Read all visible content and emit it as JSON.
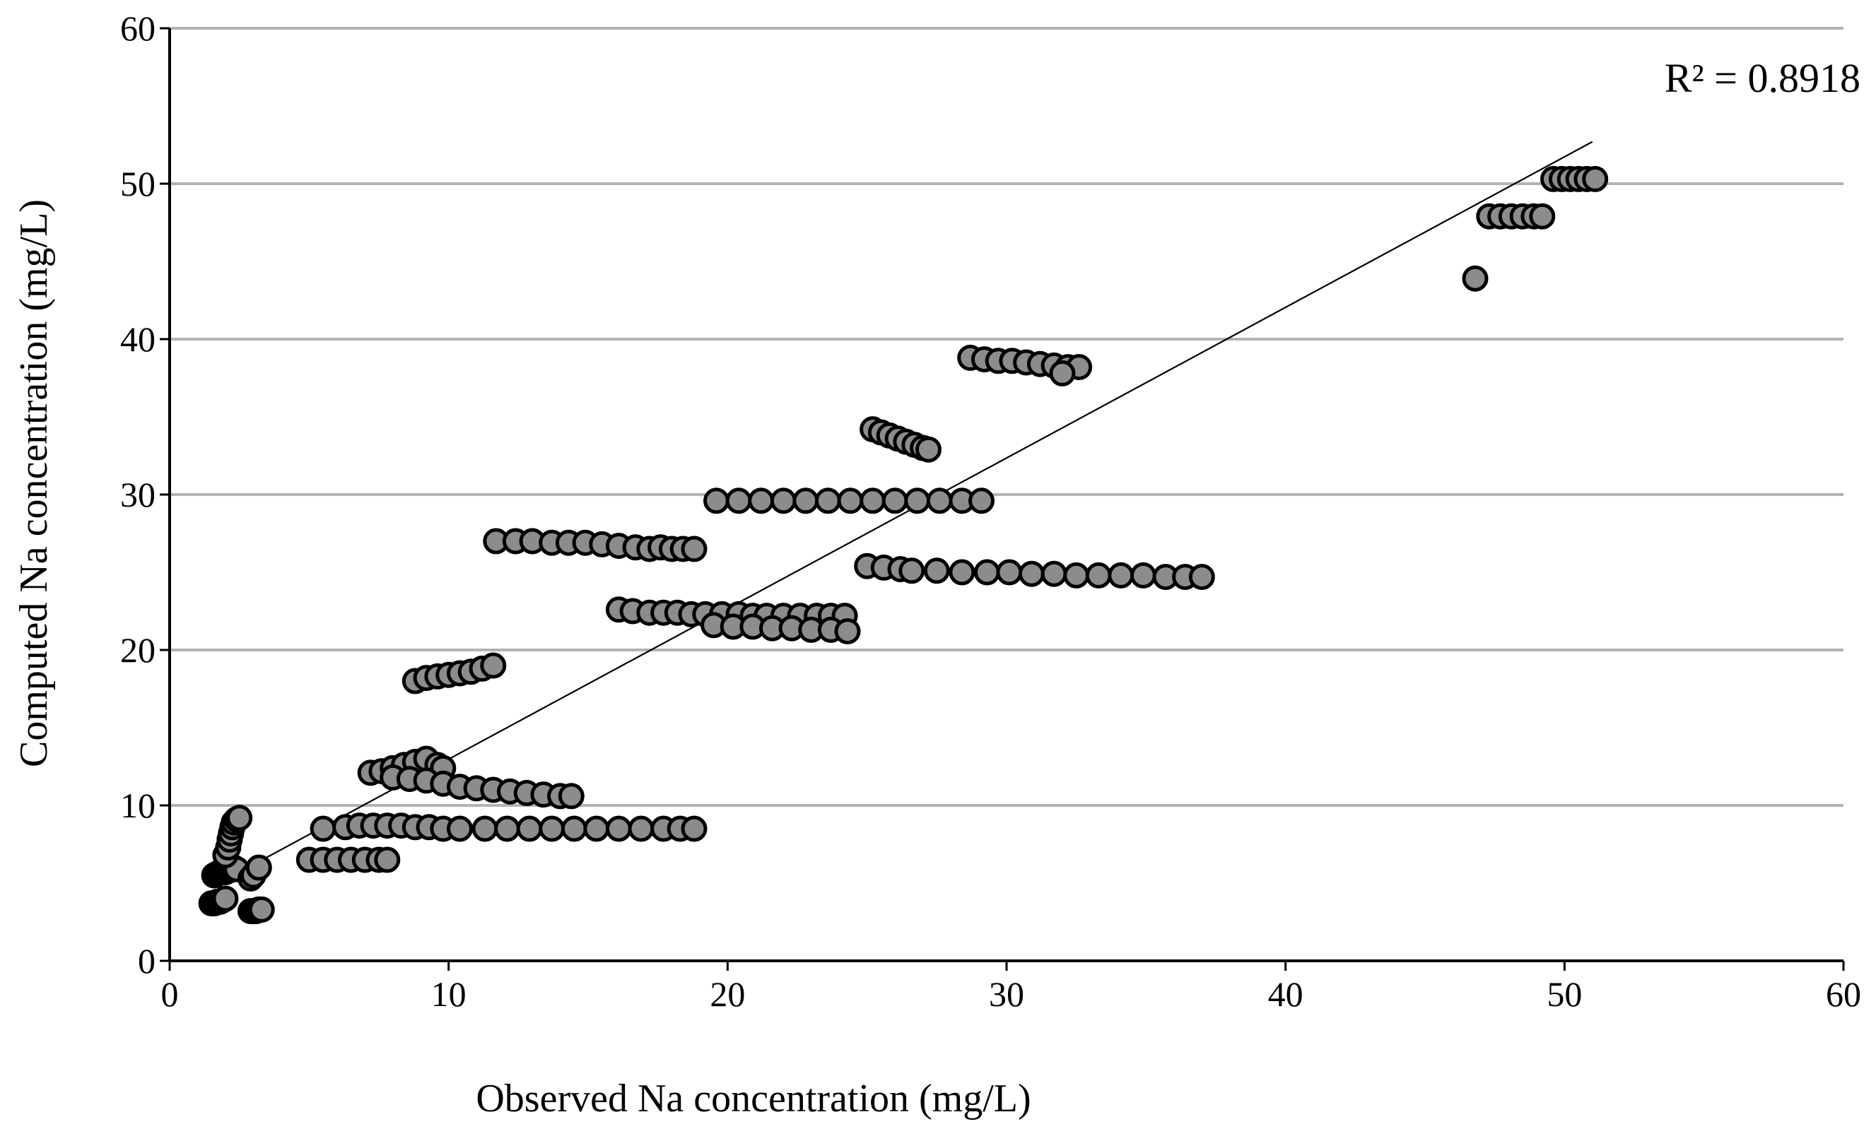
{
  "chart_data": {
    "type": "scatter",
    "title": "",
    "xlabel": "Observed Na concentration (mg/L)",
    "ylabel": "Computed Na concentration (mg/L)",
    "xlim": [
      0,
      60
    ],
    "ylim": [
      0,
      60
    ],
    "x_ticks": [
      "0",
      "10",
      "20",
      "30",
      "40",
      "50",
      "60"
    ],
    "y_ticks": [
      "0",
      "10",
      "20",
      "30",
      "40",
      "50",
      "60"
    ],
    "grid": "horizontal",
    "annotation": "R² = 0.8918",
    "marker_fill": "#8c8c8c",
    "marker_edge": "#000000",
    "trendline": {
      "x": [
        2.7,
        51.0
      ],
      "y": [
        5.9,
        52.7
      ]
    },
    "series": [
      {
        "name": "Na concentration",
        "points": [
          [
            1.5,
            3.7
          ],
          [
            1.6,
            3.7
          ],
          [
            1.7,
            3.8
          ],
          [
            1.8,
            3.8
          ],
          [
            1.9,
            3.9
          ],
          [
            2.0,
            4.0
          ],
          [
            1.6,
            5.5
          ],
          [
            1.7,
            5.6
          ],
          [
            1.8,
            5.7
          ],
          [
            1.9,
            5.8
          ],
          [
            2.0,
            5.7
          ],
          [
            2.1,
            5.8
          ],
          [
            2.2,
            5.9
          ],
          [
            2.3,
            6.0
          ],
          [
            2.4,
            5.9
          ],
          [
            2.0,
            6.8
          ],
          [
            2.1,
            7.3
          ],
          [
            2.15,
            7.8
          ],
          [
            2.2,
            8.2
          ],
          [
            2.25,
            8.6
          ],
          [
            2.3,
            8.9
          ],
          [
            2.4,
            9.1
          ],
          [
            2.5,
            9.2
          ],
          [
            2.9,
            3.2
          ],
          [
            3.0,
            3.2
          ],
          [
            3.1,
            3.2
          ],
          [
            3.2,
            3.3
          ],
          [
            3.3,
            3.3
          ],
          [
            2.9,
            5.3
          ],
          [
            3.0,
            5.5
          ],
          [
            3.2,
            6.0
          ],
          [
            5.0,
            6.5
          ],
          [
            5.5,
            6.5
          ],
          [
            6.0,
            6.5
          ],
          [
            6.5,
            6.5
          ],
          [
            7.0,
            6.5
          ],
          [
            7.5,
            6.5
          ],
          [
            7.8,
            6.5
          ],
          [
            5.5,
            8.5
          ],
          [
            6.3,
            8.6
          ],
          [
            6.8,
            8.7
          ],
          [
            7.3,
            8.7
          ],
          [
            7.8,
            8.7
          ],
          [
            8.3,
            8.7
          ],
          [
            8.8,
            8.6
          ],
          [
            9.3,
            8.6
          ],
          [
            9.8,
            8.5
          ],
          [
            10.4,
            8.5
          ],
          [
            11.3,
            8.5
          ],
          [
            12.1,
            8.5
          ],
          [
            12.9,
            8.5
          ],
          [
            13.7,
            8.5
          ],
          [
            14.5,
            8.5
          ],
          [
            15.3,
            8.5
          ],
          [
            16.1,
            8.5
          ],
          [
            16.9,
            8.5
          ],
          [
            17.7,
            8.5
          ],
          [
            18.3,
            8.5
          ],
          [
            18.8,
            8.5
          ],
          [
            7.2,
            12.1
          ],
          [
            7.6,
            12.2
          ],
          [
            8.0,
            12.4
          ],
          [
            8.4,
            12.6
          ],
          [
            8.8,
            12.8
          ],
          [
            9.2,
            13.0
          ],
          [
            9.6,
            12.6
          ],
          [
            9.8,
            12.4
          ],
          [
            8.0,
            11.8
          ],
          [
            8.6,
            11.7
          ],
          [
            9.2,
            11.6
          ],
          [
            9.8,
            11.4
          ],
          [
            10.4,
            11.2
          ],
          [
            11.0,
            11.1
          ],
          [
            11.6,
            11.0
          ],
          [
            12.2,
            10.9
          ],
          [
            12.8,
            10.8
          ],
          [
            13.4,
            10.7
          ],
          [
            14.0,
            10.6
          ],
          [
            14.4,
            10.6
          ],
          [
            8.8,
            18.0
          ],
          [
            9.2,
            18.2
          ],
          [
            9.6,
            18.3
          ],
          [
            10.0,
            18.4
          ],
          [
            10.4,
            18.5
          ],
          [
            10.8,
            18.6
          ],
          [
            11.2,
            18.8
          ],
          [
            11.6,
            19.0
          ],
          [
            11.7,
            27.0
          ],
          [
            12.4,
            27.0
          ],
          [
            13.0,
            27.0
          ],
          [
            13.7,
            26.9
          ],
          [
            14.3,
            26.9
          ],
          [
            14.9,
            26.9
          ],
          [
            15.5,
            26.8
          ],
          [
            16.1,
            26.7
          ],
          [
            16.7,
            26.6
          ],
          [
            17.2,
            26.5
          ],
          [
            17.6,
            26.6
          ],
          [
            18.0,
            26.5
          ],
          [
            18.4,
            26.5
          ],
          [
            18.8,
            26.5
          ],
          [
            16.1,
            22.6
          ],
          [
            16.6,
            22.5
          ],
          [
            17.2,
            22.4
          ],
          [
            17.7,
            22.4
          ],
          [
            18.2,
            22.4
          ],
          [
            18.7,
            22.3
          ],
          [
            19.2,
            22.3
          ],
          [
            19.8,
            22.3
          ],
          [
            20.4,
            22.3
          ],
          [
            20.9,
            22.2
          ],
          [
            21.4,
            22.2
          ],
          [
            22.0,
            22.2
          ],
          [
            22.6,
            22.2
          ],
          [
            23.2,
            22.2
          ],
          [
            23.7,
            22.2
          ],
          [
            24.2,
            22.2
          ],
          [
            19.5,
            21.6
          ],
          [
            20.2,
            21.5
          ],
          [
            20.9,
            21.5
          ],
          [
            21.6,
            21.4
          ],
          [
            22.3,
            21.4
          ],
          [
            23.0,
            21.3
          ],
          [
            23.7,
            21.3
          ],
          [
            24.3,
            21.2
          ],
          [
            19.6,
            29.6
          ],
          [
            20.4,
            29.6
          ],
          [
            21.2,
            29.6
          ],
          [
            22.0,
            29.6
          ],
          [
            22.8,
            29.6
          ],
          [
            23.6,
            29.6
          ],
          [
            24.4,
            29.6
          ],
          [
            25.2,
            29.6
          ],
          [
            26.0,
            29.6
          ],
          [
            26.8,
            29.6
          ],
          [
            27.6,
            29.6
          ],
          [
            28.4,
            29.6
          ],
          [
            29.1,
            29.6
          ],
          [
            25.2,
            34.2
          ],
          [
            25.5,
            34.0
          ],
          [
            25.8,
            33.8
          ],
          [
            26.1,
            33.6
          ],
          [
            26.4,
            33.4
          ],
          [
            26.7,
            33.2
          ],
          [
            27.0,
            33.0
          ],
          [
            27.2,
            32.9
          ],
          [
            25.0,
            25.4
          ],
          [
            25.6,
            25.3
          ],
          [
            26.2,
            25.2
          ],
          [
            26.6,
            25.1
          ],
          [
            27.5,
            25.1
          ],
          [
            28.4,
            25.0
          ],
          [
            29.3,
            25.0
          ],
          [
            30.1,
            25.0
          ],
          [
            30.9,
            24.9
          ],
          [
            31.7,
            24.9
          ],
          [
            32.5,
            24.8
          ],
          [
            33.3,
            24.8
          ],
          [
            34.1,
            24.8
          ],
          [
            34.9,
            24.8
          ],
          [
            35.7,
            24.7
          ],
          [
            36.4,
            24.7
          ],
          [
            37.0,
            24.7
          ],
          [
            28.7,
            38.8
          ],
          [
            29.2,
            38.7
          ],
          [
            29.7,
            38.6
          ],
          [
            30.2,
            38.6
          ],
          [
            30.7,
            38.5
          ],
          [
            31.2,
            38.4
          ],
          [
            31.7,
            38.3
          ],
          [
            32.2,
            38.2
          ],
          [
            32.6,
            38.2
          ],
          [
            32.0,
            37.8
          ],
          [
            46.8,
            43.9
          ],
          [
            47.3,
            47.9
          ],
          [
            47.7,
            47.9
          ],
          [
            48.1,
            47.9
          ],
          [
            48.5,
            47.9
          ],
          [
            48.9,
            47.9
          ],
          [
            49.2,
            47.9
          ],
          [
            49.6,
            50.3
          ],
          [
            49.9,
            50.3
          ],
          [
            50.2,
            50.3
          ],
          [
            50.5,
            50.3
          ],
          [
            50.8,
            50.3
          ],
          [
            51.1,
            50.3
          ]
        ]
      }
    ]
  }
}
